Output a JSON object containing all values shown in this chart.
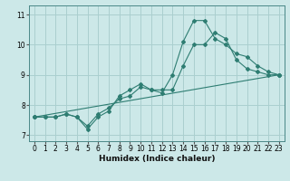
{
  "xlabel": "Humidex (Indice chaleur)",
  "background_color": "#cce8e8",
  "grid_color": "#aacfcf",
  "line_color": "#2e7d72",
  "xlim": [
    -0.5,
    23.5
  ],
  "ylim": [
    6.8,
    11.3
  ],
  "xticks": [
    0,
    1,
    2,
    3,
    4,
    5,
    6,
    7,
    8,
    9,
    10,
    11,
    12,
    13,
    14,
    15,
    16,
    17,
    18,
    19,
    20,
    21,
    22,
    23
  ],
  "yticks": [
    7,
    8,
    9,
    10,
    11
  ],
  "series1_x": [
    0,
    1,
    2,
    3,
    4,
    5,
    6,
    7,
    8,
    9,
    10,
    11,
    12,
    13,
    14,
    15,
    16,
    17,
    18,
    19,
    20,
    21,
    22,
    23
  ],
  "series1_y": [
    7.6,
    7.6,
    7.6,
    7.7,
    7.6,
    7.3,
    7.7,
    7.9,
    8.2,
    8.3,
    8.6,
    8.5,
    8.5,
    8.5,
    9.3,
    10.0,
    10.0,
    10.4,
    10.2,
    9.5,
    9.2,
    9.1,
    9.0,
    9.0
  ],
  "series2_x": [
    0,
    1,
    2,
    3,
    4,
    5,
    6,
    7,
    8,
    9,
    10,
    11,
    12,
    13,
    14,
    15,
    16,
    17,
    18,
    19,
    20,
    21,
    22,
    23
  ],
  "series2_y": [
    7.6,
    7.6,
    7.6,
    7.7,
    7.6,
    7.2,
    7.6,
    7.8,
    8.3,
    8.5,
    8.7,
    8.5,
    8.4,
    9.0,
    10.1,
    10.8,
    10.8,
    10.2,
    10.0,
    9.7,
    9.6,
    9.3,
    9.1,
    9.0
  ],
  "series3_x": [
    0,
    23
  ],
  "series3_y": [
    7.6,
    9.0
  ],
  "xlabel_fontsize": 6.5,
  "xlabel_fontweight": "bold",
  "tick_fontsize": 5.5,
  "marker_size": 2.0,
  "line_width": 0.8
}
